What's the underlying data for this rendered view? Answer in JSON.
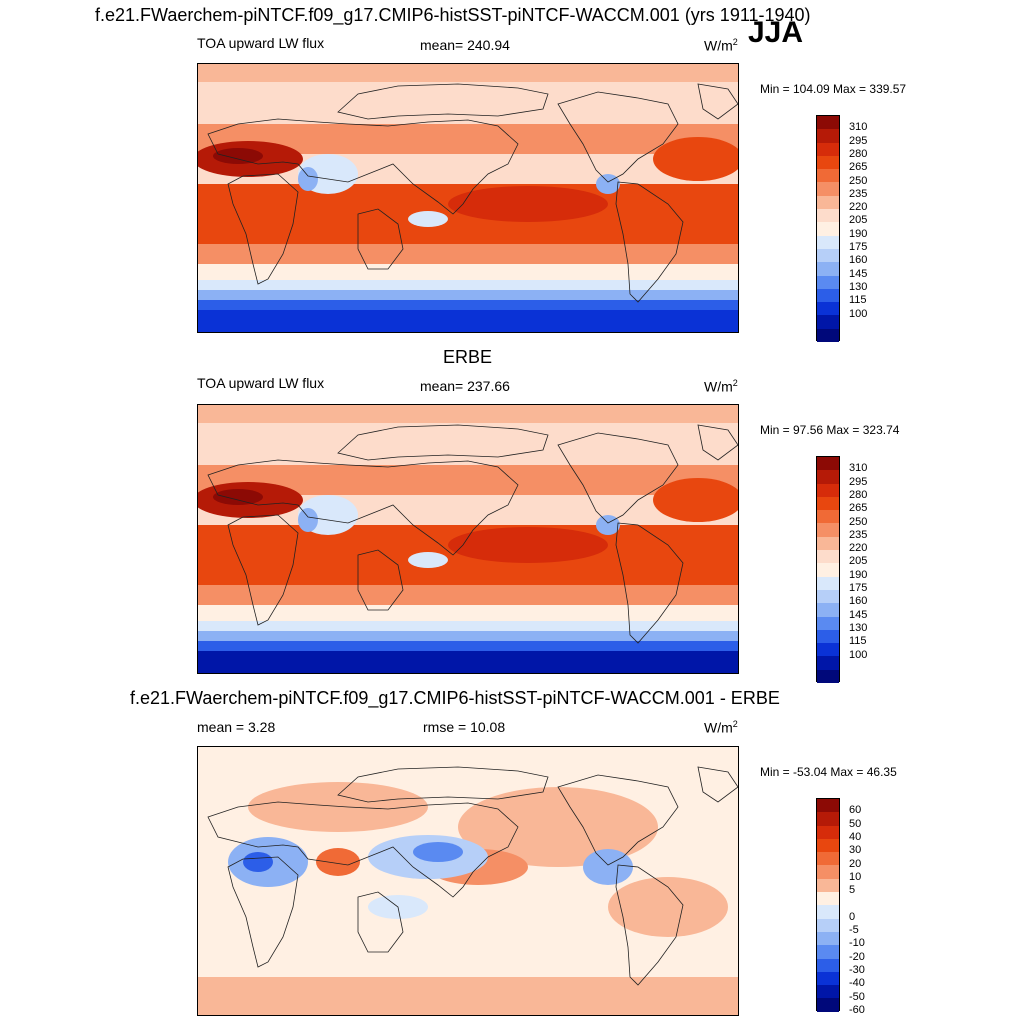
{
  "season": "JJA",
  "panels": [
    {
      "title": "f.e21.FWaerchem-piNTCF.f09_g17.CMIP6-histSST-piNTCF-WACCM.001 (yrs 1911-1940)",
      "left_label": "TOA upward LW flux",
      "center_label": "mean= 240.94",
      "units": "W/m",
      "units_sup": "2",
      "minmax": "Min = 104.09 Max = 339.57",
      "colorbar_labels": [
        "310",
        "295",
        "280",
        "265",
        "250",
        "235",
        "220",
        "205",
        "190",
        "175",
        "160",
        "145",
        "130",
        "115",
        "100"
      ],
      "colorbar_colors": [
        "#8c0a05",
        "#b51a07",
        "#d62c0a",
        "#e8470f",
        "#f06a36",
        "#f58f65",
        "#f9b797",
        "#fddccb",
        "#fff0e3",
        "#d9e8fb",
        "#b6cff8",
        "#8cb1f4",
        "#5a8af1",
        "#2c5ee8",
        "#0a32d6",
        "#0016a8",
        "#00087a"
      ],
      "chart_data": {
        "type": "heatmap",
        "variable": "TOA upward LW flux",
        "units": "W/m2",
        "mean": 240.94,
        "min": 104.09,
        "max": 339.57,
        "levels": [
          100,
          115,
          130,
          145,
          160,
          175,
          190,
          205,
          220,
          235,
          250,
          265,
          280,
          295,
          310
        ]
      }
    },
    {
      "title": "ERBE",
      "left_label": "TOA upward LW flux",
      "center_label": "mean= 237.66",
      "units": "W/m",
      "units_sup": "2",
      "minmax": "Min =  97.56 Max = 323.74",
      "colorbar_labels": [
        "310",
        "295",
        "280",
        "265",
        "250",
        "235",
        "220",
        "205",
        "190",
        "175",
        "160",
        "145",
        "130",
        "115",
        "100"
      ],
      "colorbar_colors": [
        "#8c0a05",
        "#b51a07",
        "#d62c0a",
        "#e8470f",
        "#f06a36",
        "#f58f65",
        "#f9b797",
        "#fddccb",
        "#fff0e3",
        "#d9e8fb",
        "#b6cff8",
        "#8cb1f4",
        "#5a8af1",
        "#2c5ee8",
        "#0a32d6",
        "#0016a8",
        "#00087a"
      ],
      "chart_data": {
        "type": "heatmap",
        "variable": "TOA upward LW flux",
        "units": "W/m2",
        "mean": 237.66,
        "min": 97.56,
        "max": 323.74,
        "levels": [
          100,
          115,
          130,
          145,
          160,
          175,
          190,
          205,
          220,
          235,
          250,
          265,
          280,
          295,
          310
        ]
      }
    },
    {
      "title": "f.e21.FWaerchem-piNTCF.f09_g17.CMIP6-histSST-piNTCF-WACCM.001 - ERBE",
      "left_label": "mean =   3.28",
      "center_label": "rmse =  10.08",
      "units": "W/m",
      "units_sup": "2",
      "minmax": "Min = -53.04 Max =  46.35",
      "colorbar_labels": [
        "60",
        "50",
        "40",
        "30",
        "20",
        "10",
        "5",
        "0",
        "-5",
        "-10",
        "-20",
        "-30",
        "-40",
        "-50",
        "-60"
      ],
      "colorbar_colors": [
        "#8c0a05",
        "#b51a07",
        "#d62c0a",
        "#e8470f",
        "#f06a36",
        "#f58f65",
        "#f9b797",
        "#fff0e3",
        "#d9e8fb",
        "#b6cff8",
        "#8cb1f4",
        "#5a8af1",
        "#2c5ee8",
        "#0a32d6",
        "#0016a8",
        "#00087a"
      ],
      "chart_data": {
        "type": "heatmap",
        "variable": "difference (model - ERBE)",
        "units": "W/m2",
        "mean": 3.28,
        "rmse": 10.08,
        "min": -53.04,
        "max": 46.35,
        "levels": [
          -60,
          -50,
          -40,
          -30,
          -20,
          -10,
          -5,
          0,
          5,
          10,
          20,
          30,
          40,
          50,
          60
        ]
      }
    }
  ]
}
